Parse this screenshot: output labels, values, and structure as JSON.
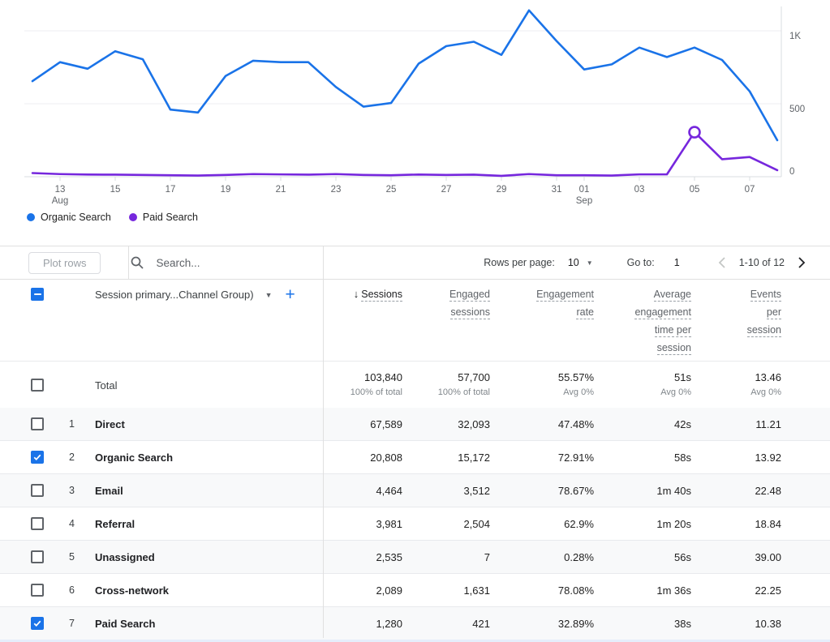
{
  "chart_data": {
    "type": "line",
    "x": [
      "Aug 12",
      "Aug 13",
      "Aug 14",
      "Aug 15",
      "Aug 16",
      "Aug 17",
      "Aug 18",
      "Aug 19",
      "Aug 20",
      "Aug 21",
      "Aug 22",
      "Aug 23",
      "Aug 24",
      "Aug 25",
      "Aug 26",
      "Aug 27",
      "Aug 28",
      "Aug 29",
      "Aug 30",
      "Aug 31",
      "Sep 01",
      "Sep 02",
      "Sep 03",
      "Sep 04",
      "Sep 05",
      "Sep 06",
      "Sep 07",
      "Sep 08"
    ],
    "series": [
      {
        "name": "Organic Search",
        "color": "#1a73e8",
        "values": [
          655,
          785,
          740,
          860,
          805,
          460,
          440,
          690,
          795,
          785,
          785,
          615,
          480,
          505,
          775,
          895,
          925,
          835,
          1140,
          930,
          735,
          770,
          885,
          820,
          885,
          800,
          585,
          250
        ]
      },
      {
        "name": "Paid Search",
        "color": "#7627dd",
        "values": [
          25,
          18,
          15,
          14,
          12,
          10,
          8,
          12,
          18,
          16,
          14,
          18,
          12,
          10,
          15,
          12,
          14,
          6,
          18,
          10,
          10,
          8,
          16,
          16,
          305,
          120,
          135,
          45
        ]
      }
    ],
    "ylim": [
      0,
      1150
    ],
    "grid": "horizontal",
    "legend_position": "bottom-left",
    "y_ticks": [
      {
        "label": "0",
        "value": 0,
        "dy": -3
      },
      {
        "label": "500",
        "value": 500,
        "dy": 10
      },
      {
        "label": "1K",
        "value": 1000,
        "dy": 10
      }
    ],
    "x_ticks": [
      {
        "i": 1,
        "label": "13",
        "sub": "Aug"
      },
      {
        "i": 3,
        "label": "15"
      },
      {
        "i": 5,
        "label": "17"
      },
      {
        "i": 7,
        "label": "19"
      },
      {
        "i": 9,
        "label": "21"
      },
      {
        "i": 11,
        "label": "23"
      },
      {
        "i": 13,
        "label": "25"
      },
      {
        "i": 15,
        "label": "27"
      },
      {
        "i": 17,
        "label": "29"
      },
      {
        "i": 19,
        "label": "31"
      },
      {
        "i": 20,
        "label": "01",
        "sub": "Sep"
      },
      {
        "i": 22,
        "label": "03"
      },
      {
        "i": 24,
        "label": "05"
      },
      {
        "i": 26,
        "label": "07"
      }
    ],
    "marker": {
      "series": 1,
      "index": 24
    }
  },
  "toolbar": {
    "plot_rows": "Plot rows",
    "search_placeholder": "Search...",
    "rows_per_page_label": "Rows per page:",
    "rows_per_page_value": "10",
    "go_to_label": "Go to:",
    "go_to_value": "1",
    "range": "1-10 of 12"
  },
  "table": {
    "dimension_header": "Session primary...Channel Group)",
    "columns": [
      {
        "lines": [
          "Sessions"
        ],
        "sorted": true
      },
      {
        "lines": [
          "Engaged",
          "sessions"
        ]
      },
      {
        "lines": [
          "Engagement",
          "rate"
        ]
      },
      {
        "lines": [
          "Average",
          "engagement",
          "time per",
          "session"
        ]
      },
      {
        "lines": [
          "Events",
          "per",
          "session"
        ]
      }
    ],
    "total": {
      "label": "Total",
      "values": [
        "103,840",
        "57,700",
        "55.57%",
        "51s",
        "13.46"
      ],
      "subvalues": [
        "100% of total",
        "100% of total",
        "Avg 0%",
        "Avg 0%",
        "Avg 0%"
      ]
    },
    "rows": [
      {
        "num": "1",
        "name": "Direct",
        "checked": false,
        "values": [
          "67,589",
          "32,093",
          "47.48%",
          "42s",
          "11.21"
        ]
      },
      {
        "num": "2",
        "name": "Organic Search",
        "checked": true,
        "values": [
          "20,808",
          "15,172",
          "72.91%",
          "58s",
          "13.92"
        ]
      },
      {
        "num": "3",
        "name": "Email",
        "checked": false,
        "values": [
          "4,464",
          "3,512",
          "78.67%",
          "1m 40s",
          "22.48"
        ]
      },
      {
        "num": "4",
        "name": "Referral",
        "checked": false,
        "values": [
          "3,981",
          "2,504",
          "62.9%",
          "1m 20s",
          "18.84"
        ]
      },
      {
        "num": "5",
        "name": "Unassigned",
        "checked": false,
        "values": [
          "2,535",
          "7",
          "0.28%",
          "56s",
          "39.00"
        ]
      },
      {
        "num": "6",
        "name": "Cross-network",
        "checked": false,
        "values": [
          "2,089",
          "1,631",
          "78.08%",
          "1m 36s",
          "22.25"
        ]
      },
      {
        "num": "7",
        "name": "Paid Search",
        "checked": true,
        "values": [
          "1,280",
          "421",
          "32.89%",
          "38s",
          "10.38"
        ]
      }
    ]
  }
}
